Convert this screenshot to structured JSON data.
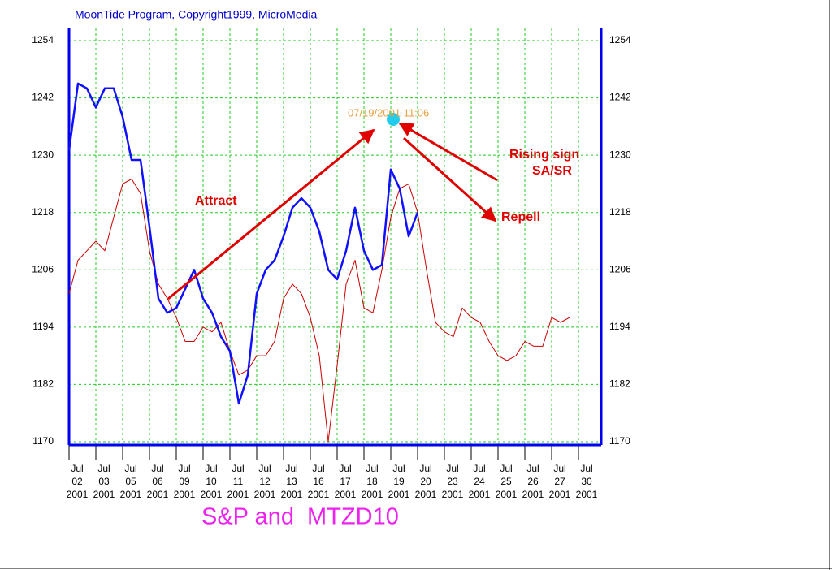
{
  "header": "MoonTide Program, Copyright1999, MicroMedia",
  "chart_data": {
    "type": "line",
    "title": "S&P and  MTZD10",
    "categories": [
      "Jul 02 2001",
      null,
      null,
      "Jul 03 2001",
      null,
      null,
      "Jul 05 2001",
      null,
      null,
      "Jul 06 2001",
      null,
      null,
      "Jul 09 2001",
      null,
      null,
      "Jul 10 2001",
      null,
      null,
      "Jul 11 2001",
      null,
      null,
      "Jul 12 2001",
      null,
      null,
      "Jul 13 2001",
      null,
      null,
      "Jul 16 2001",
      null,
      null,
      "Jul 17 2001",
      null,
      null,
      "Jul 18 2001",
      null,
      null,
      "Jul 19 2001",
      null,
      null,
      "Jul 20 2001",
      null,
      null,
      "Jul 23 2001",
      null,
      null,
      "Jul 24 2001",
      null,
      null,
      "Jul 25 2001",
      null,
      null,
      "Jul 26 2001",
      null,
      null,
      "Jul 27 2001",
      null,
      null,
      "Jul 30 2001"
    ],
    "series": [
      {
        "color": "#1010ff",
        "values": [
          1231,
          1245,
          1244,
          1240,
          1244,
          1244,
          1238,
          1229,
          1229,
          1215,
          1200,
          1197,
          1198,
          1202,
          1206,
          1200,
          1197,
          1192,
          1189,
          1178,
          1184,
          1201,
          1206,
          1208,
          1213,
          1219,
          1221,
          1219,
          1214,
          1206,
          1204,
          1210,
          1219,
          1210,
          1206,
          1207,
          1227,
          1223,
          1213,
          1218,
          null,
          null,
          null,
          null,
          null,
          null,
          null,
          null,
          null,
          null,
          null,
          null,
          null,
          null,
          null,
          null,
          null,
          null
        ]
      },
      {
        "color": "#cc0000",
        "values": [
          1201,
          1208,
          1210,
          1212,
          1210,
          1217,
          1224,
          1225,
          1222,
          1210,
          1203,
          1200,
          1196,
          1191,
          1191,
          1194,
          1193,
          1195,
          1189,
          1184,
          1185,
          1188,
          1188,
          1191,
          1200,
          1203,
          1201,
          1196,
          1188,
          1170,
          1186,
          1203,
          1208,
          1198,
          1197,
          1206,
          1217,
          1223,
          1224,
          1218,
          1206,
          1195,
          1193,
          1192,
          1198,
          1196,
          1195,
          1191,
          1188,
          1187,
          1188,
          1191,
          1190,
          1190,
          1196,
          1195,
          1196,
          null
        ]
      }
    ],
    "ylim": [
      1170,
      1254
    ],
    "yticks": [
      1170,
      1182,
      1194,
      1206,
      1218,
      1230,
      1242,
      1254
    ],
    "grid": true,
    "annotations": [
      "07/19/2001 11:06",
      "Attract",
      "Rising sign",
      "SA/SR",
      "Repell"
    ]
  }
}
